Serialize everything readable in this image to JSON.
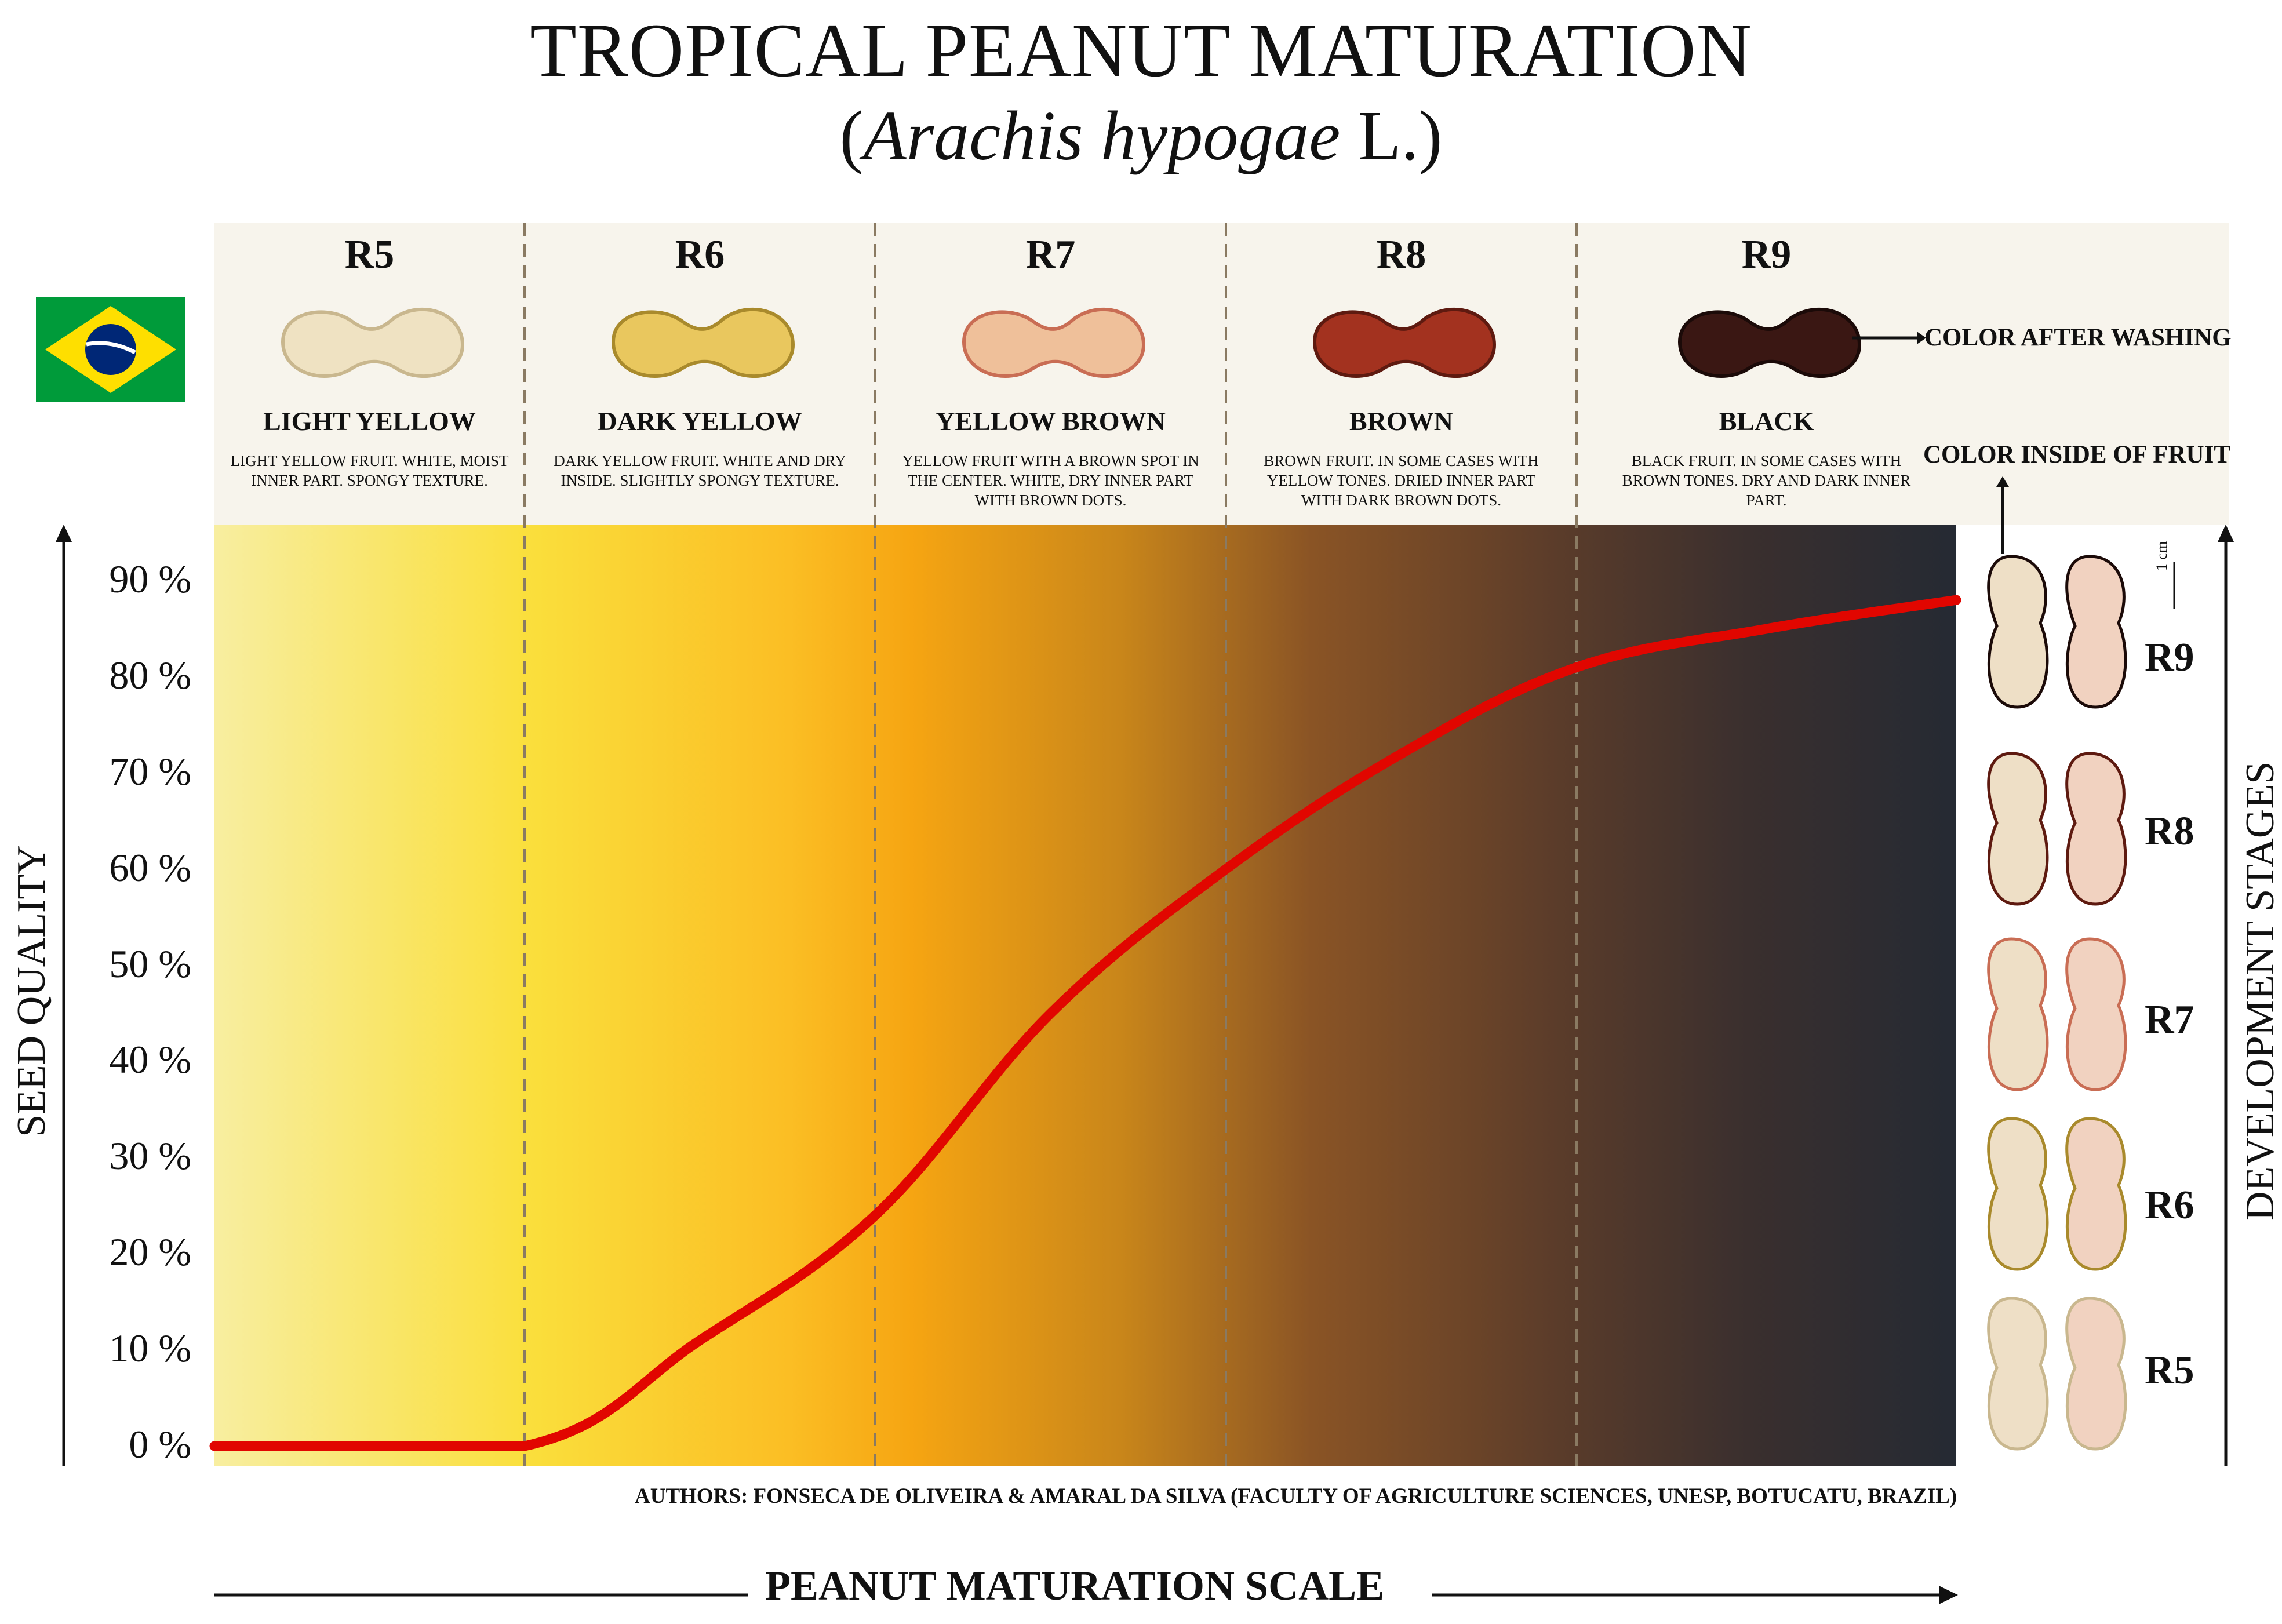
{
  "title": "TROPICAL PEANUT MATURATION",
  "subtitle": {
    "open": "(",
    "species": "Arachis hypogae",
    "author": " L.)"
  },
  "stages": [
    {
      "code": "R5",
      "color_name": "LIGHT YELLOW",
      "description": "LIGHT YELLOW FRUIT. WHITE, MOIST INNER PART. SPONGY TEXTURE.",
      "pod_color": "#efe2c2",
      "pod_shade": "#c9b78e"
    },
    {
      "code": "R6",
      "color_name": "DARK YELLOW",
      "description": "DARK YELLOW FRUIT. WHITE AND DRY INSIDE. SLIGHTLY SPONGY TEXTURE.",
      "pod_color": "#e9c75e",
      "pod_shade": "#a98a2c"
    },
    {
      "code": "R7",
      "color_name": "YELLOW BROWN",
      "description": "YELLOW FRUIT WITH A BROWN SPOT IN THE CENTER. WHITE, DRY INNER PART WITH BROWN DOTS.",
      "pod_color": "#efc09a",
      "pod_shade": "#c96d54"
    },
    {
      "code": "R8",
      "color_name": "BROWN",
      "description": "BROWN FRUIT. IN SOME CASES WITH YELLOW TONES. DRIED INNER PART WITH DARK BROWN DOTS.",
      "pod_color": "#a3321f",
      "pod_shade": "#5e1a10"
    },
    {
      "code": "R9",
      "color_name": "BLACK",
      "description": "BLACK FRUIT. IN SOME CASES WITH BROWN TONES. DRY AND DARK INNER PART.",
      "pod_color": "#3a1713",
      "pod_shade": "#1b0a08"
    }
  ],
  "notes": {
    "after_washing": "COLOR AFTER WASHING",
    "inside": "COLOR INSIDE OF FRUIT",
    "scale_bar": "1 cm"
  },
  "side_stages": [
    "R9",
    "R8",
    "R7",
    "R6",
    "R5"
  ],
  "authors": "AUTHORS: FONSECA DE OLIVEIRA & AMARAL DA SILVA  (FACULTY OF AGRICULTURE SCIENCES, UNESP, BOTUCATU, BRAZIL)",
  "chart_data": {
    "type": "line",
    "title": "TROPICAL PEANUT MATURATION",
    "ylabel": "SEED QUALITY",
    "xlabel": "PEANUT MATURATION SCALE",
    "right_label": "DEVELOPMENT STAGES",
    "categories": [
      "R5",
      "R6",
      "R7",
      "R8",
      "R9"
    ],
    "ylim": [
      0,
      90
    ],
    "yticks": [
      "0 %",
      "10 %",
      "20 %",
      "30 %",
      "40 %",
      "50 %",
      "60 %",
      "70 %",
      "80 %",
      "90 %"
    ],
    "series": [
      {
        "color": "#e10600",
        "points": [
          {
            "x": 0.0,
            "y": 0
          },
          {
            "x": 1.0,
            "y": 0
          },
          {
            "x": 1.5,
            "y": 11
          },
          {
            "x": 2.0,
            "y": 24
          },
          {
            "x": 2.5,
            "y": 45
          },
          {
            "x": 3.0,
            "y": 60
          },
          {
            "x": 3.5,
            "y": 72
          },
          {
            "x": 4.0,
            "y": 81
          },
          {
            "x": 4.5,
            "y": 85
          },
          {
            "x": 5.0,
            "y": 88
          }
        ]
      }
    ],
    "grid": false,
    "stage_dividers": true,
    "gradient": [
      "#f8eea0",
      "#fadf3c",
      "#fbbe24",
      "#f6a512",
      "#c9861a",
      "#8a5425",
      "#5b3c2a",
      "#3a2f2e",
      "#252a33"
    ]
  },
  "flag": {
    "green": "#009b3a",
    "yellow": "#fedf00",
    "blue": "#002776"
  }
}
